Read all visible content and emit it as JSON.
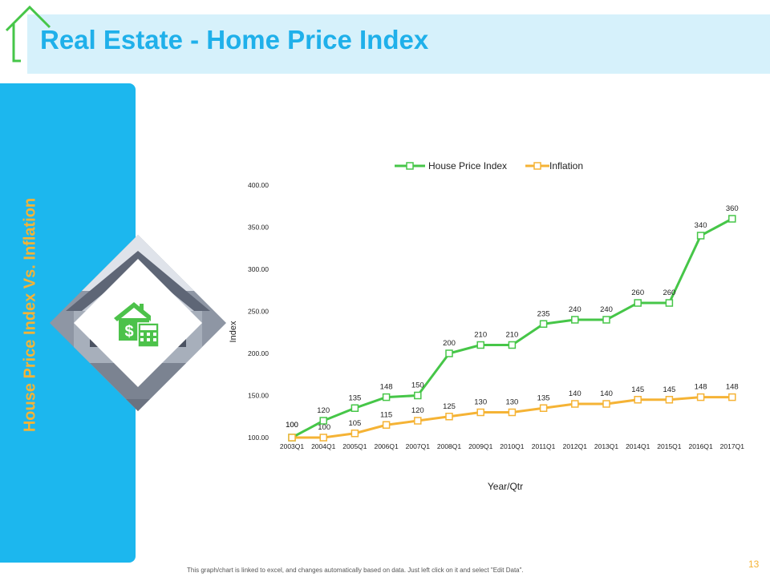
{
  "slide": {
    "title": "Real Estate - Home Price Index",
    "side_title": "House Price Index Vs. Inflation",
    "footnote": "This graph/chart is linked to excel, and changes automatically based on data. Just left click on it and select \"Edit Data\".",
    "page_number": "13"
  },
  "colors": {
    "accent_blue": "#1cb7ee",
    "title_bg": "#d6f1fb",
    "title_text": "#1fb0ea",
    "orange": "#f5b335",
    "green": "#46c648",
    "house_icon_green": "#4cc24a"
  },
  "icons": {
    "title": "house-outline-icon",
    "diamond": "house-dollar-calculator-icon"
  },
  "chart_data": {
    "type": "line",
    "categories": [
      "2003Q1",
      "2004Q1",
      "2005Q1",
      "2006Q1",
      "2007Q1",
      "2008Q1",
      "2009Q1",
      "2010Q1",
      "2011Q1",
      "2012Q1",
      "2013Q1",
      "2014Q1",
      "2015Q1",
      "2016Q1",
      "2017Q1"
    ],
    "series": [
      {
        "name": "House Price Index",
        "color": "#46c648",
        "values": [
          100,
          120,
          135,
          148,
          150,
          200,
          210,
          210,
          235,
          240,
          240,
          260,
          260,
          340,
          360
        ]
      },
      {
        "name": "Inflation",
        "color": "#f5b335",
        "values": [
          100,
          100,
          105,
          115,
          120,
          125,
          130,
          130,
          135,
          140,
          140,
          145,
          145,
          148,
          148
        ]
      }
    ],
    "yticks": [
      "400.00",
      "350.00",
      "300.00",
      "250.00",
      "200.00",
      "150.00",
      "100.00"
    ],
    "ylim": [
      100,
      400
    ],
    "xlabel": "Year/Qtr",
    "ylabel": "Index",
    "legend_position": "top",
    "grid": false
  }
}
